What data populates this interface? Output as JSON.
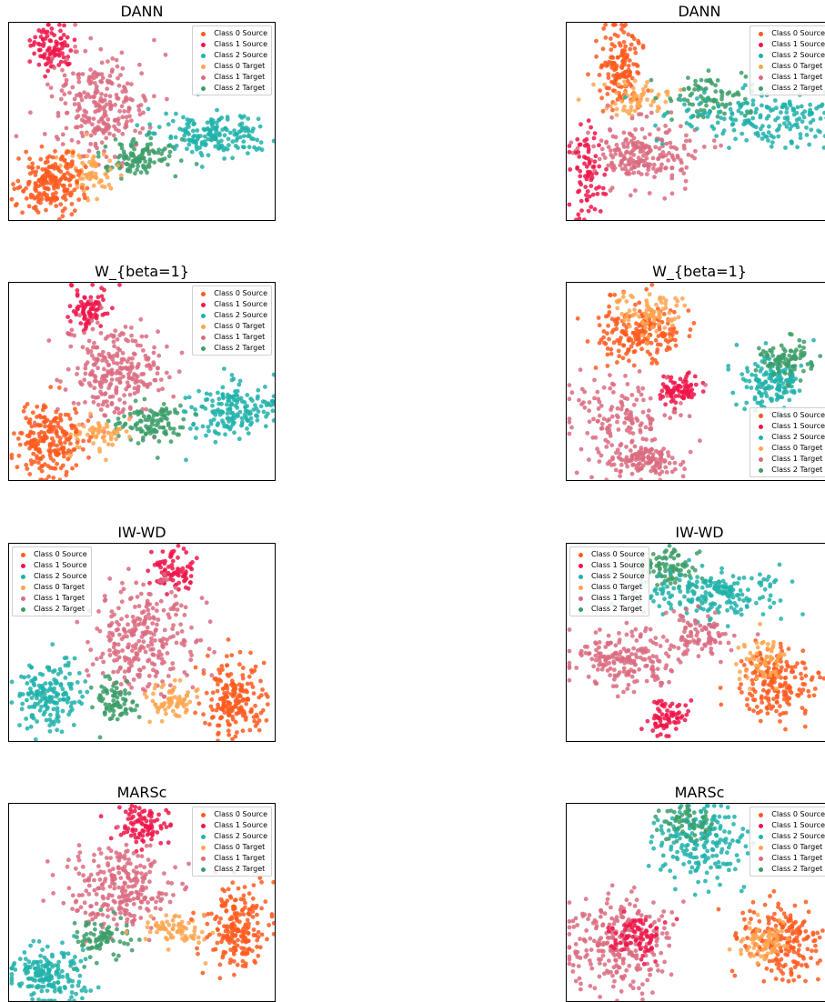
{
  "legend_entries": [
    "Class 0 Source",
    "Class 1 Source",
    "Class 2 Source",
    "Class 0 Target",
    "Class 1 Target",
    "Class 2 Target"
  ],
  "colors": {
    "class0_source": "#ff5a1e",
    "class1_source": "#f0154a",
    "class2_source": "#20b2aa",
    "class0_target": "#ffa54f",
    "class1_target": "#db6b80",
    "class2_target": "#3c9e68"
  },
  "chart_data": [
    {
      "type": "scatter",
      "title": "DANN",
      "legend": "top-right",
      "clusters": [
        {
          "series": "Class 1 Source",
          "cx": 0.16,
          "cy": 0.12,
          "sx": 0.04,
          "sy": 0.06,
          "n": 90
        },
        {
          "series": "Class 1 Target",
          "cx": 0.34,
          "cy": 0.42,
          "sx": 0.09,
          "sy": 0.13,
          "n": 260
        },
        {
          "series": "Class 2 Source",
          "cx": 0.77,
          "cy": 0.56,
          "sx": 0.11,
          "sy": 0.05,
          "n": 180
        },
        {
          "series": "Class 2 Target",
          "cx": 0.48,
          "cy": 0.67,
          "sx": 0.07,
          "sy": 0.05,
          "n": 110
        },
        {
          "series": "Class 0 Target",
          "cx": 0.3,
          "cy": 0.76,
          "sx": 0.05,
          "sy": 0.07,
          "n": 70
        },
        {
          "series": "Class 0 Source",
          "cx": 0.15,
          "cy": 0.8,
          "sx": 0.06,
          "sy": 0.08,
          "n": 200
        }
      ]
    },
    {
      "type": "scatter",
      "title": "DANN",
      "legend": "top-right",
      "clusters": [
        {
          "series": "Class 0 Source",
          "cx": 0.2,
          "cy": 0.22,
          "sx": 0.04,
          "sy": 0.1,
          "n": 150
        },
        {
          "series": "Class 0 Target",
          "cx": 0.27,
          "cy": 0.38,
          "sx": 0.06,
          "sy": 0.04,
          "n": 60
        },
        {
          "series": "Class 1 Target",
          "cx": 0.28,
          "cy": 0.65,
          "sx": 0.1,
          "sy": 0.08,
          "n": 220
        },
        {
          "series": "Class 1 Source",
          "cx": 0.08,
          "cy": 0.76,
          "sx": 0.03,
          "sy": 0.12,
          "n": 80
        },
        {
          "series": "Class 2 Target",
          "cx": 0.52,
          "cy": 0.38,
          "sx": 0.08,
          "sy": 0.06,
          "n": 90
        },
        {
          "series": "Class 2 Source",
          "cx": 0.75,
          "cy": 0.48,
          "sx": 0.16,
          "sy": 0.07,
          "n": 200
        }
      ]
    },
    {
      "type": "scatter",
      "title": "W_{beta=1}",
      "legend": "top-right",
      "clusters": [
        {
          "series": "Class 1 Source",
          "cx": 0.3,
          "cy": 0.14,
          "sx": 0.04,
          "sy": 0.06,
          "n": 80
        },
        {
          "series": "Class 1 Target",
          "cx": 0.4,
          "cy": 0.45,
          "sx": 0.09,
          "sy": 0.12,
          "n": 260
        },
        {
          "series": "Class 2 Source",
          "cx": 0.82,
          "cy": 0.64,
          "sx": 0.08,
          "sy": 0.07,
          "n": 170
        },
        {
          "series": "Class 2 Target",
          "cx": 0.53,
          "cy": 0.7,
          "sx": 0.07,
          "sy": 0.05,
          "n": 110
        },
        {
          "series": "Class 0 Target",
          "cx": 0.33,
          "cy": 0.77,
          "sx": 0.05,
          "sy": 0.05,
          "n": 60
        },
        {
          "series": "Class 0 Source",
          "cx": 0.15,
          "cy": 0.8,
          "sx": 0.06,
          "sy": 0.09,
          "n": 210
        }
      ]
    },
    {
      "type": "scatter",
      "title": "W_{beta=1}",
      "legend": "bottom-right",
      "clusters": [
        {
          "series": "Class 0 Source",
          "cx": 0.27,
          "cy": 0.25,
          "sx": 0.08,
          "sy": 0.08,
          "n": 190
        },
        {
          "series": "Class 0 Target",
          "cx": 0.33,
          "cy": 0.14,
          "sx": 0.07,
          "sy": 0.05,
          "n": 80
        },
        {
          "series": "Class 1 Source",
          "cx": 0.42,
          "cy": 0.53,
          "sx": 0.04,
          "sy": 0.04,
          "n": 80
        },
        {
          "series": "Class 1 Target",
          "cx": 0.2,
          "cy": 0.72,
          "sx": 0.1,
          "sy": 0.12,
          "n": 170
        },
        {
          "series": "Class 1 Target",
          "cx": 0.3,
          "cy": 0.88,
          "sx": 0.06,
          "sy": 0.04,
          "n": 110
        },
        {
          "series": "Class 2 Source",
          "cx": 0.77,
          "cy": 0.5,
          "sx": 0.06,
          "sy": 0.07,
          "n": 150
        },
        {
          "series": "Class 2 Target",
          "cx": 0.82,
          "cy": 0.38,
          "sx": 0.05,
          "sy": 0.05,
          "n": 90
        }
      ]
    },
    {
      "type": "scatter",
      "title": "IW-WD",
      "legend": "top-left",
      "clusters": [
        {
          "series": "Class 1 Source",
          "cx": 0.61,
          "cy": 0.13,
          "sx": 0.04,
          "sy": 0.05,
          "n": 80
        },
        {
          "series": "Class 1 Target",
          "cx": 0.51,
          "cy": 0.48,
          "sx": 0.1,
          "sy": 0.13,
          "n": 280
        },
        {
          "series": "Class 2 Source",
          "cx": 0.15,
          "cy": 0.77,
          "sx": 0.06,
          "sy": 0.09,
          "n": 170
        },
        {
          "series": "Class 2 Target",
          "cx": 0.39,
          "cy": 0.79,
          "sx": 0.04,
          "sy": 0.06,
          "n": 80
        },
        {
          "series": "Class 0 Target",
          "cx": 0.6,
          "cy": 0.78,
          "sx": 0.05,
          "sy": 0.04,
          "n": 70
        },
        {
          "series": "Class 0 Source",
          "cx": 0.84,
          "cy": 0.78,
          "sx": 0.06,
          "sy": 0.09,
          "n": 190
        }
      ]
    },
    {
      "type": "scatter",
      "title": "IW-WD",
      "legend": "top-left",
      "clusters": [
        {
          "series": "Class 2 Target",
          "cx": 0.38,
          "cy": 0.13,
          "sx": 0.06,
          "sy": 0.05,
          "n": 90
        },
        {
          "series": "Class 2 Source",
          "cx": 0.56,
          "cy": 0.25,
          "sx": 0.13,
          "sy": 0.06,
          "n": 200
        },
        {
          "series": "Class 1 Target",
          "cx": 0.22,
          "cy": 0.57,
          "sx": 0.1,
          "sy": 0.07,
          "n": 200
        },
        {
          "series": "Class 1 Target",
          "cx": 0.5,
          "cy": 0.45,
          "sx": 0.06,
          "sy": 0.06,
          "n": 90
        },
        {
          "series": "Class 1 Source",
          "cx": 0.37,
          "cy": 0.87,
          "sx": 0.04,
          "sy": 0.04,
          "n": 70
        },
        {
          "series": "Class 0 Source",
          "cx": 0.79,
          "cy": 0.7,
          "sx": 0.07,
          "sy": 0.09,
          "n": 190
        },
        {
          "series": "Class 0 Target",
          "cx": 0.74,
          "cy": 0.58,
          "sx": 0.05,
          "sy": 0.06,
          "n": 60
        }
      ]
    },
    {
      "type": "scatter",
      "title": "MARSc",
      "legend": "top-right",
      "clusters": [
        {
          "series": "Class 1 Source",
          "cx": 0.5,
          "cy": 0.11,
          "sx": 0.05,
          "sy": 0.05,
          "n": 90
        },
        {
          "series": "Class 1 Target",
          "cx": 0.4,
          "cy": 0.43,
          "sx": 0.1,
          "sy": 0.11,
          "n": 260
        },
        {
          "series": "Class 2 Target",
          "cx": 0.36,
          "cy": 0.67,
          "sx": 0.05,
          "sy": 0.05,
          "n": 80
        },
        {
          "series": "Class 2 Source",
          "cx": 0.14,
          "cy": 0.86,
          "sx": 0.07,
          "sy": 0.07,
          "n": 180
        },
        {
          "series": "Class 0 Target",
          "cx": 0.62,
          "cy": 0.63,
          "sx": 0.06,
          "sy": 0.04,
          "n": 70
        },
        {
          "series": "Class 0 Source",
          "cx": 0.85,
          "cy": 0.62,
          "sx": 0.06,
          "sy": 0.1,
          "n": 200
        }
      ]
    },
    {
      "type": "scatter",
      "title": "MARSc",
      "legend": "top-right",
      "clusters": [
        {
          "series": "Class 2 Source",
          "cx": 0.5,
          "cy": 0.2,
          "sx": 0.08,
          "sy": 0.1,
          "n": 190
        },
        {
          "series": "Class 2 Target",
          "cx": 0.45,
          "cy": 0.1,
          "sx": 0.05,
          "sy": 0.05,
          "n": 60
        },
        {
          "series": "Class 1 Target",
          "cx": 0.2,
          "cy": 0.7,
          "sx": 0.1,
          "sy": 0.12,
          "n": 260
        },
        {
          "series": "Class 1 Source",
          "cx": 0.26,
          "cy": 0.66,
          "sx": 0.05,
          "sy": 0.06,
          "n": 80
        },
        {
          "series": "Class 0 Source",
          "cx": 0.8,
          "cy": 0.68,
          "sx": 0.07,
          "sy": 0.1,
          "n": 200
        },
        {
          "series": "Class 0 Target",
          "cx": 0.74,
          "cy": 0.7,
          "sx": 0.05,
          "sy": 0.06,
          "n": 70
        }
      ]
    }
  ]
}
